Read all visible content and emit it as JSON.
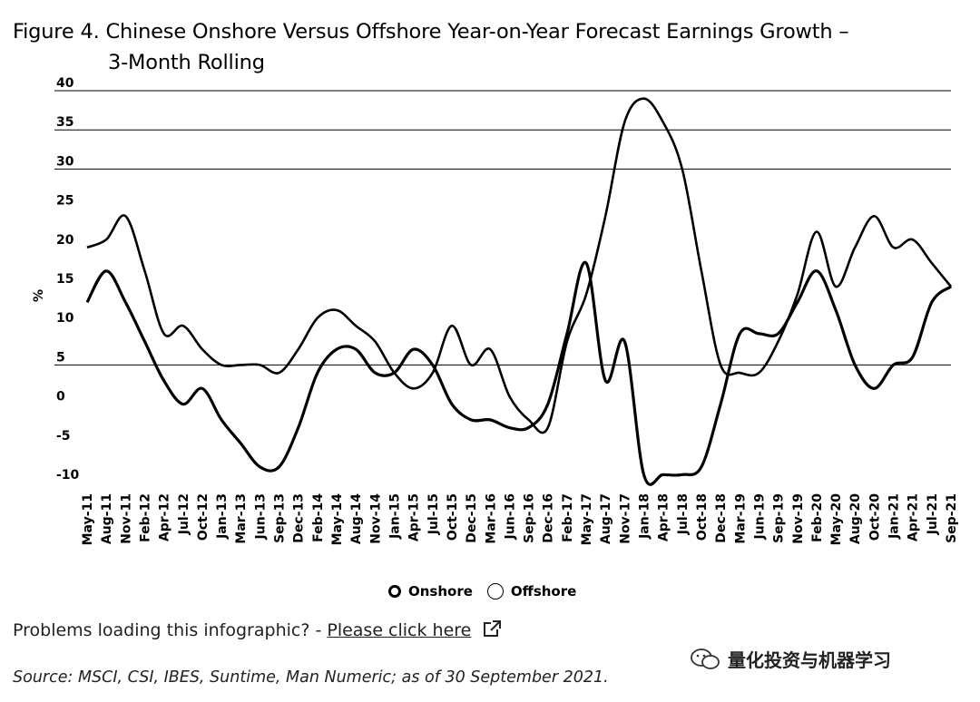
{
  "title_line1": "Figure 4. Chinese Onshore Versus Offshore Year-on-Year Forecast Earnings Growth –",
  "title_line2": "3-Month Rolling",
  "problem_text": "Problems loading this infographic? - ",
  "problem_link": "Please click here",
  "watermark": "量化投资与机器学习",
  "source": "Source: MSCI, CSI, IBES, Suntime, Man Numeric; as of 30 September 2021.",
  "icons": {
    "external_link": "external-link-icon",
    "watermark": "wechat-icon"
  },
  "chart_data": {
    "type": "line",
    "ylabel": "%",
    "xlabel": "",
    "ylim": [
      -10,
      40
    ],
    "yticks": [
      40,
      35,
      30,
      25,
      20,
      15,
      10,
      5,
      0,
      -5,
      -10
    ],
    "gridlines": [
      40,
      35,
      30,
      5
    ],
    "grid": true,
    "legend_position": "bottom-center",
    "x": [
      "May-11",
      "Aug-11",
      "Nov-11",
      "Feb-12",
      "Apr-12",
      "Jul-12",
      "Oct-12",
      "Jan-13",
      "Mar-13",
      "Jun-13",
      "Sep-13",
      "Dec-13",
      "Feb-14",
      "May-14",
      "Aug-14",
      "Nov-14",
      "Jan-15",
      "Apr-15",
      "Jul-15",
      "Oct-15",
      "Dec-15",
      "Mar-16",
      "Jun-16",
      "Sep-16",
      "Dec-16",
      "Feb-17",
      "May-17",
      "Aug-17",
      "Nov-17",
      "Jan-18",
      "Apr-18",
      "Jul-18",
      "Oct-18",
      "Dec-18",
      "Mar-19",
      "Jun-19",
      "Sep-19",
      "Nov-19",
      "Feb-20",
      "May-20",
      "Aug-20",
      "Oct-20",
      "Jan-21",
      "Apr-21",
      "Jul-21",
      "Sep-21"
    ],
    "series": [
      {
        "name": "Onshore",
        "style": "thick",
        "values": [
          13,
          17,
          13,
          8,
          3,
          0,
          2,
          -2,
          -5,
          -8,
          -8,
          -3,
          4,
          7,
          7,
          4,
          4,
          7,
          5,
          0,
          -2,
          -2,
          -3,
          -3,
          0,
          9,
          18,
          3,
          8,
          -9,
          -9,
          -9,
          -8,
          0,
          9,
          9,
          9,
          13,
          17,
          12,
          5,
          2,
          5,
          6,
          13,
          15
        ]
      },
      {
        "name": "Offshore",
        "style": "thin",
        "values": [
          20,
          21,
          24,
          17,
          9,
          10,
          7,
          5,
          5,
          5,
          4,
          7,
          11,
          12,
          10,
          8,
          4,
          2,
          4,
          10,
          5,
          7,
          1,
          -2,
          -3,
          8,
          14,
          24,
          36,
          39,
          36,
          30,
          17,
          5,
          4,
          4,
          8,
          14,
          22,
          15,
          20,
          24,
          20,
          21,
          18,
          15
        ]
      }
    ]
  }
}
